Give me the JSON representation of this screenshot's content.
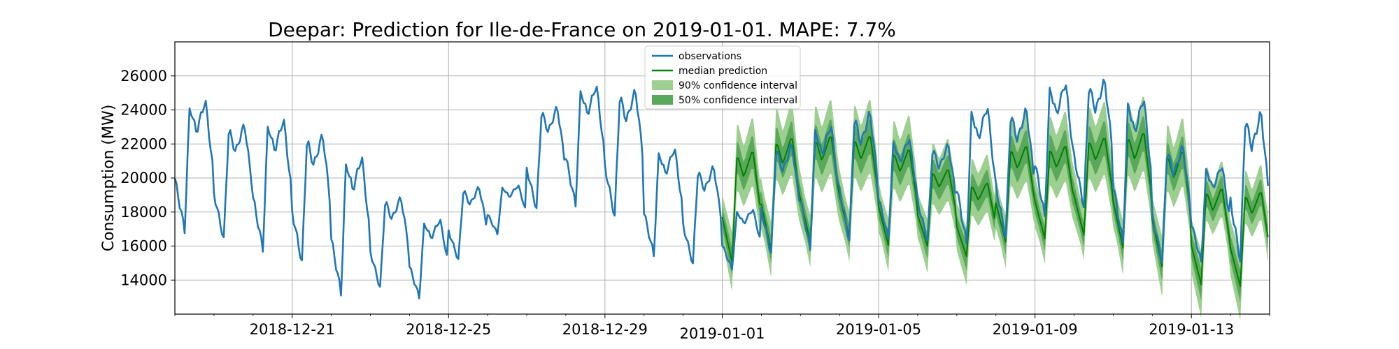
{
  "chart_data": {
    "type": "line",
    "title": "Deepar: Prediction for Ile-de-France on 2019-01-01. MAPE: 7.7%",
    "xlabel": "",
    "ylabel": "Consumption (MW)",
    "xlim": [
      "2018-12-18",
      "2019-01-15"
    ],
    "ylim": [
      12000,
      28000
    ],
    "x_ticks": [
      "2018-12-21",
      "2018-12-25",
      "2018-12-29",
      "2019-01-01",
      "2019-01-05",
      "2019-01-09",
      "2019-01-13"
    ],
    "y_ticks": [
      14000,
      16000,
      18000,
      20000,
      22000,
      24000,
      26000
    ],
    "grid": true,
    "legend_position": "top-center",
    "colors": {
      "observations": "#1f77b4",
      "median": "#008000",
      "ci90": "#9dcf91",
      "ci50": "#5aa85a"
    },
    "legend": [
      {
        "label": "observations",
        "kind": "line",
        "color": "#1f77b4"
      },
      {
        "label": "median prediction",
        "kind": "line",
        "color": "#008000"
      },
      {
        "label": "90% confidence interval",
        "kind": "patch",
        "color": "#9dcf91"
      },
      {
        "label": "50% confidence interval",
        "kind": "patch",
        "color": "#5aa85a"
      }
    ],
    "series": [
      {
        "name": "observations",
        "x": [
          "2018-12-18",
          "2018-12-19",
          "2018-12-20",
          "2018-12-21",
          "2018-12-22",
          "2018-12-23",
          "2018-12-24",
          "2018-12-25",
          "2018-12-26",
          "2018-12-27",
          "2018-12-28",
          "2018-12-29",
          "2018-12-30",
          "2018-12-31",
          "2019-01-01",
          "2019-01-02",
          "2019-01-03",
          "2019-01-04",
          "2019-01-05",
          "2019-01-06",
          "2019-01-07",
          "2019-01-08",
          "2019-01-09",
          "2019-01-10",
          "2019-01-11",
          "2019-01-12",
          "2019-01-13",
          "2019-01-14"
        ],
        "daily_min": [
          16600,
          16100,
          15500,
          14700,
          12900,
          13300,
          12800,
          15000,
          16600,
          17900,
          18100,
          17400,
          15200,
          14700,
          14500,
          15300,
          15500,
          16000,
          16200,
          16100,
          15800,
          16200,
          17400,
          18000,
          15800,
          14800,
          14800,
          14800
        ],
        "daily_max": [
          24600,
          23200,
          23500,
          22600,
          21300,
          18900,
          17600,
          19500,
          19600,
          24200,
          25500,
          25200,
          21800,
          20700,
          18200,
          22000,
          23200,
          23900,
          22400,
          22000,
          24300,
          24100,
          25700,
          25800,
          24800,
          21900,
          20800,
          23900
        ]
      },
      {
        "name": "median prediction",
        "x": [
          "2019-01-01",
          "2019-01-02",
          "2019-01-03",
          "2019-01-04",
          "2019-01-05",
          "2019-01-06",
          "2019-01-07",
          "2019-01-08",
          "2019-01-09",
          "2019-01-10",
          "2019-01-11",
          "2019-01-12",
          "2019-01-13",
          "2019-01-14"
        ],
        "daily_min": [
          14800,
          15500,
          16000,
          16300,
          15800,
          15800,
          15200,
          16000,
          16200,
          16400,
          15600,
          14500,
          13500,
          13400
        ],
        "daily_max": [
          21700,
          22500,
          22600,
          22600,
          21800,
          20600,
          19800,
          22000,
          22000,
          22500,
          22800,
          21700,
          19500,
          19300
        ]
      }
    ]
  }
}
